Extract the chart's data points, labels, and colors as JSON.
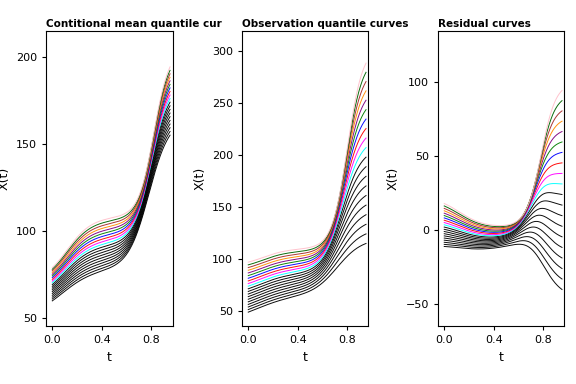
{
  "title1": "Contitional mean quantile cur",
  "title2": "Observation quantile curves",
  "title3": "Residual curves",
  "xlabel": "t",
  "ylabel": "X(t)",
  "t_min": -0.05,
  "t_max": 0.97,
  "panel1_ylim": [
    45,
    215
  ],
  "panel2_ylim": [
    35,
    320
  ],
  "panel3_ylim": [
    -65,
    135
  ],
  "panel1_yticks": [
    50,
    100,
    150,
    200
  ],
  "panel2_yticks": [
    50,
    100,
    150,
    200,
    250,
    300
  ],
  "panel3_yticks": [
    -50,
    0,
    50,
    100
  ],
  "xticks": [
    0.0,
    0.4,
    0.8
  ],
  "n_curves": 20,
  "curve_colors": [
    "black",
    "black",
    "black",
    "black",
    "black",
    "black",
    "black",
    "black",
    "black",
    "black",
    "cyan",
    "magenta",
    "red",
    "blue",
    "green",
    "purple",
    "darkorange",
    "brown",
    "darkgreen",
    "pink"
  ]
}
